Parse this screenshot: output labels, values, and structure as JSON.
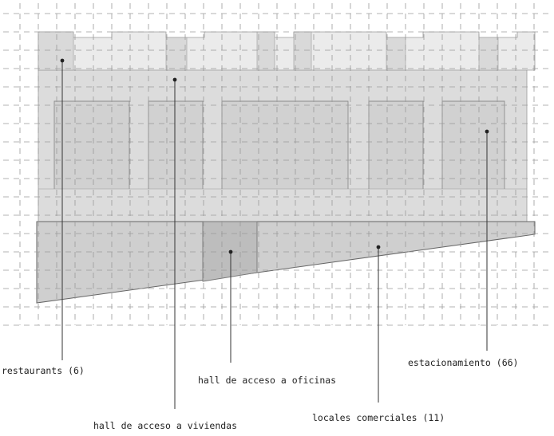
{
  "labels": {
    "restaurants": "restaurants (6)",
    "hall_viviendas": "hall de acceso a viviendas",
    "hall_oficinas": "hall de acceso a oficinas",
    "locales": "locales comerciales (11)",
    "estacionamiento": "estacionamiento (66)"
  },
  "colors": {
    "top_band": "#ebebeb",
    "top_band_dark": "#d9d9d9",
    "upper_body": "#dcdcdc",
    "upper_rooms": "#d1d1d1",
    "ramp": "#cfcfcf",
    "hall_oficinas_box": "#bdbdbd",
    "grid": "#9a9a9a",
    "outline": "#8c8c8c",
    "text": "#222222"
  }
}
